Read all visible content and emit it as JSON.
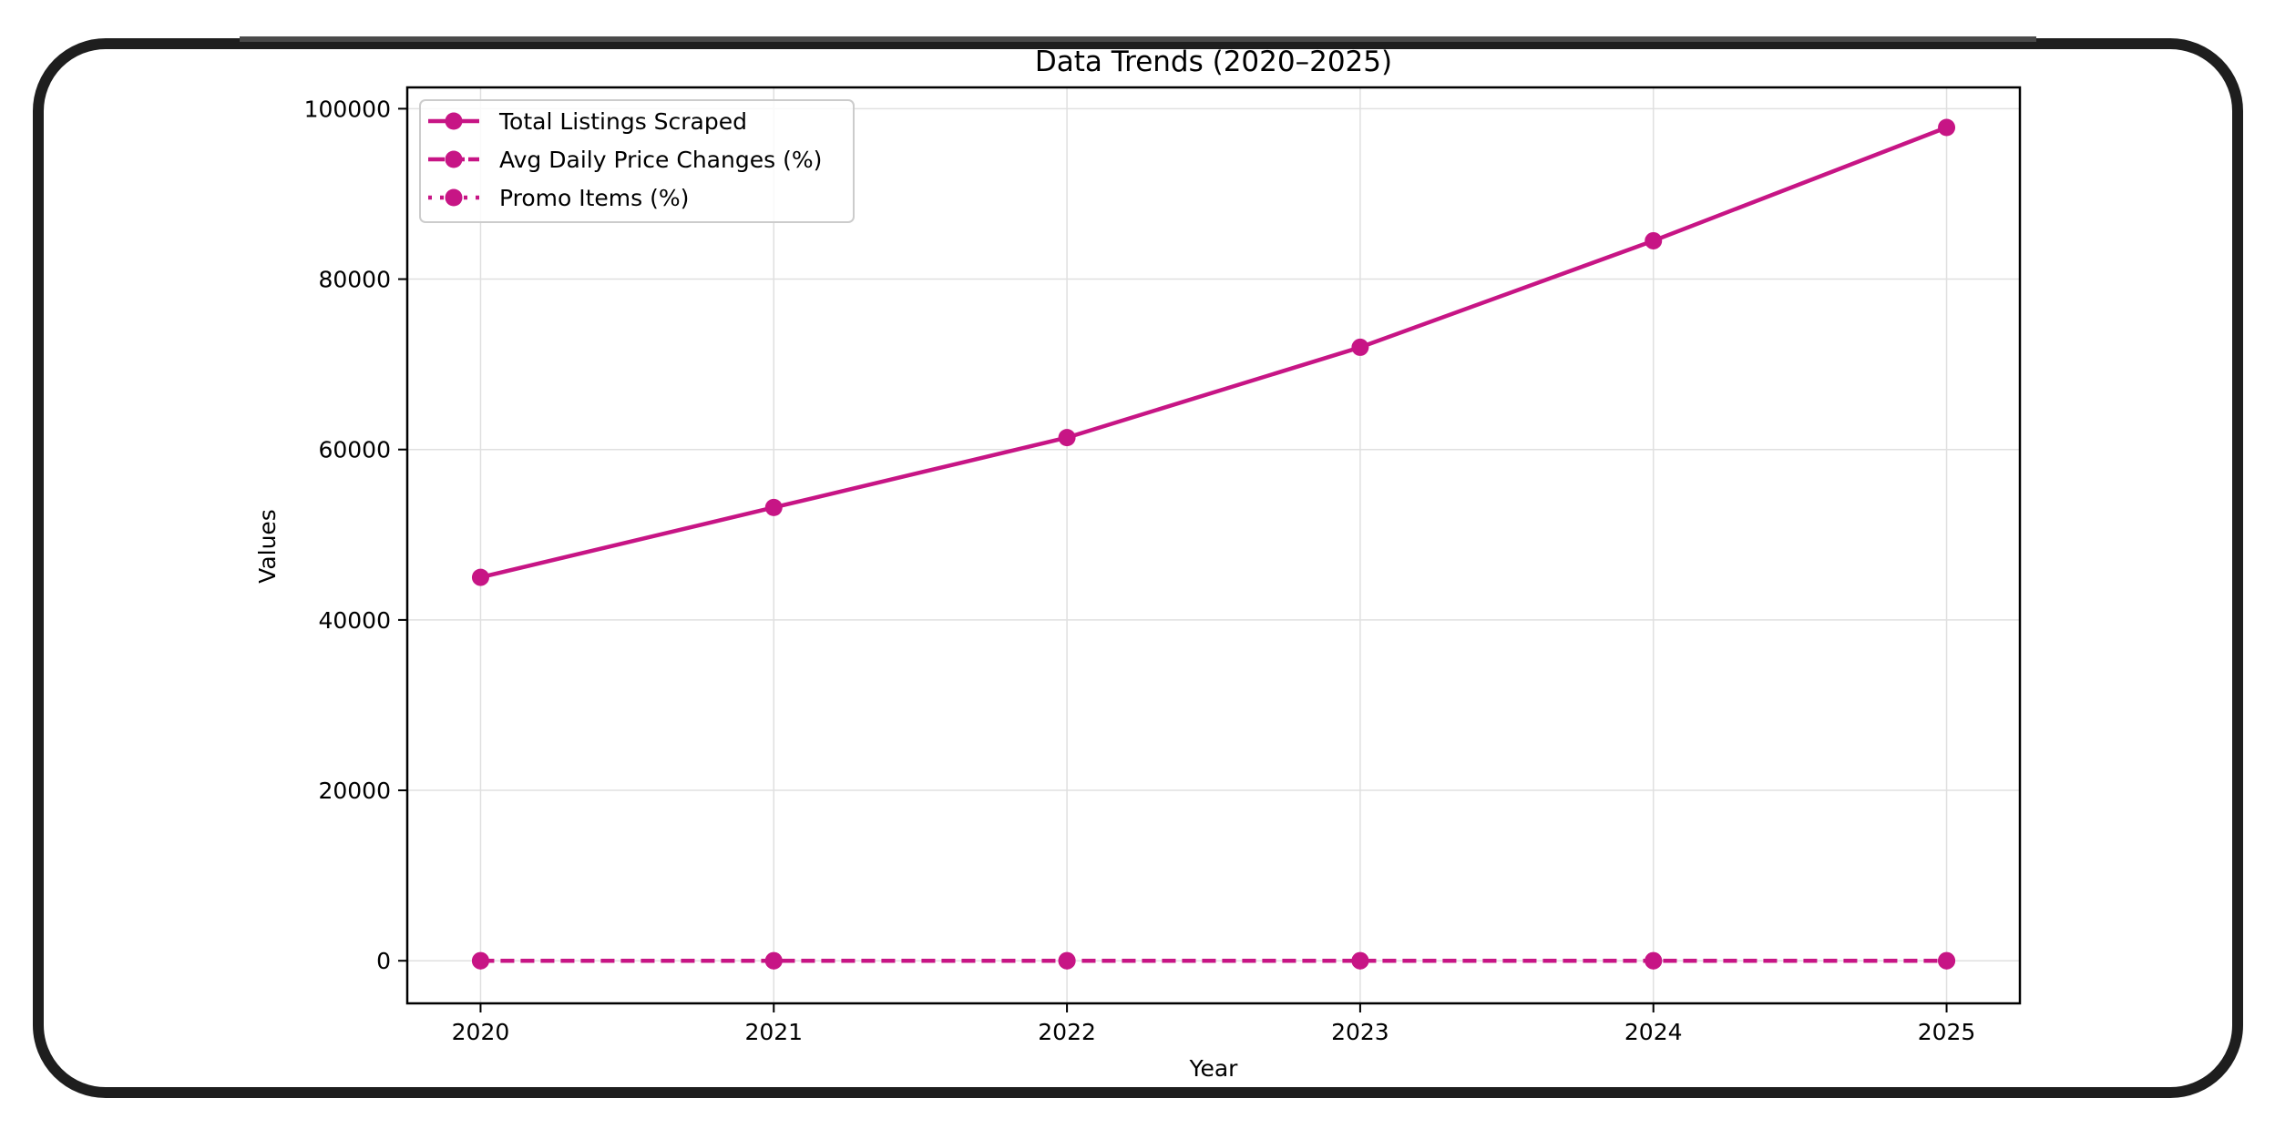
{
  "chart_data": {
    "type": "line",
    "title": "Data Trends (2020–2025)",
    "xlabel": "Year",
    "ylabel": "Values",
    "x": [
      2020,
      2021,
      2022,
      2023,
      2024,
      2025
    ],
    "categories": [
      "2020",
      "2021",
      "2022",
      "2023",
      "2024",
      "2025"
    ],
    "series": [
      {
        "name": "Total Listings Scraped",
        "values": [
          45000,
          53200,
          61400,
          72000,
          84500,
          97800
        ],
        "linestyle": "solid",
        "marker": "circle",
        "color": "#C71585"
      },
      {
        "name": "Avg Daily Price Changes (%)",
        "values": [
          0,
          0,
          0,
          0,
          0,
          0
        ],
        "linestyle": "dashed",
        "marker": "circle",
        "color": "#C71585"
      },
      {
        "name": "Promo Items (%)",
        "values": [
          0,
          0,
          0,
          0,
          0,
          0
        ],
        "linestyle": "dotted",
        "marker": "circle",
        "color": "#C71585"
      }
    ],
    "yticks": [
      0,
      20000,
      40000,
      60000,
      80000,
      100000
    ],
    "ytick_labels": [
      "0",
      "20000",
      "40000",
      "60000",
      "80000",
      "100000"
    ],
    "ylim": [
      -5000,
      102500
    ],
    "xlim": [
      2019.75,
      2025.25
    ],
    "grid": true,
    "legend_position": "upper left"
  },
  "colors": {
    "series": "#C71585",
    "grid": "#e0e0e0",
    "frame": "#1e1e1e"
  }
}
